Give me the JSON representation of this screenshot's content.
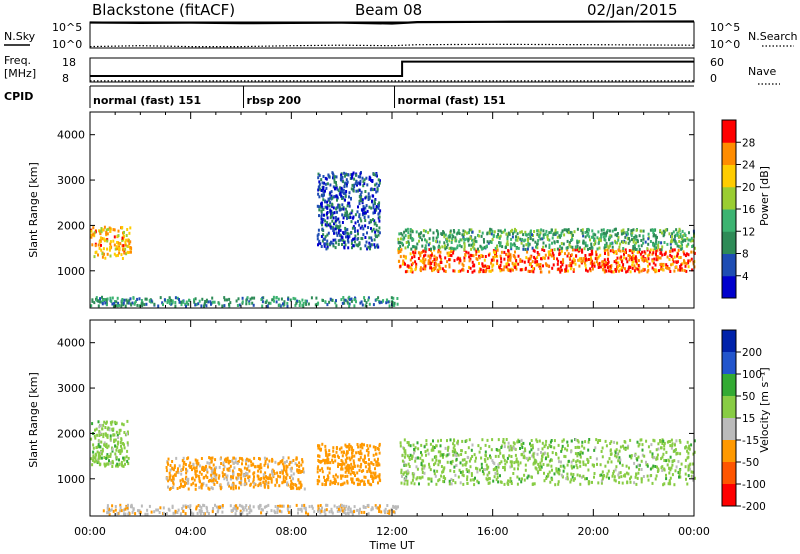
{
  "header": {
    "station": "Blackstone (fitACF)",
    "beam": "Beam 08",
    "date": "02/Jan/2015"
  },
  "top_panels": {
    "nsky_label": "N.Sky",
    "nsearch_label": "N.Search",
    "noise_ticks": [
      "10^5",
      "10^0"
    ],
    "freq_label_top": "Freq.",
    "freq_label_unit": "[MHz]",
    "freq_ticks": [
      "18",
      "8"
    ],
    "nave_label": "Nave",
    "nave_ticks": [
      "60",
      "0"
    ],
    "cpid_label": "CPID"
  },
  "chart_data": [
    {
      "type": "line",
      "title": "",
      "series": [
        {
          "name": "N.Sky",
          "x": [
            0,
            2,
            4,
            6,
            8,
            10,
            12,
            13,
            16,
            20,
            24
          ],
          "y": [
            250000,
            200000,
            220000,
            180000,
            200000,
            230000,
            150000,
            300000,
            350000,
            380000,
            400000
          ]
        },
        {
          "name": "N.Search",
          "x": [
            0,
            2,
            4,
            6,
            8,
            10,
            12,
            13,
            16,
            20,
            24
          ],
          "y": [
            2,
            3,
            2,
            2,
            3,
            4,
            3,
            5,
            6,
            5,
            4
          ]
        }
      ],
      "ylim_labels": [
        "10^0",
        "10^5"
      ],
      "xlim": [
        0,
        24
      ]
    },
    {
      "type": "line",
      "title": "",
      "series": [
        {
          "name": "Freq.",
          "x": [
            0,
            12.4,
            12.4,
            24
          ],
          "y": [
            10.5,
            10.5,
            16.5,
            16.5
          ]
        },
        {
          "name": "Nave",
          "x": [
            0,
            24
          ],
          "y": [
            3,
            3
          ]
        }
      ],
      "freq_ylim": [
        8,
        18
      ],
      "nave_ylim": [
        0,
        60
      ],
      "xlim": [
        0,
        24
      ]
    },
    {
      "type": "heatmap",
      "title": "",
      "cpid_segments": [
        {
          "label": "normal (fast) 151",
          "start": 0,
          "end": 6.1
        },
        {
          "label": "rbsp 200",
          "start": 6.1,
          "end": 12.1
        },
        {
          "label": "normal (fast) 151",
          "start": 12.1,
          "end": 24
        }
      ],
      "xlabel": "Time UT",
      "ylabel": "Slant Range [km]",
      "xlim": [
        0,
        24
      ],
      "ylim": [
        180,
        4500
      ],
      "xticks": [
        "00:00",
        "04:00",
        "08:00",
        "12:00",
        "16:00",
        "20:00",
        "00:00"
      ],
      "yticks": [
        1000,
        2000,
        3000,
        4000
      ],
      "colorbar": {
        "label": "Power [dB]",
        "ticks": [
          4,
          8,
          12,
          16,
          20,
          24,
          28
        ],
        "range": [
          0,
          30
        ]
      },
      "features": [
        {
          "t0": 0,
          "t1": 1.6,
          "r0": 1300,
          "r1": 2000,
          "level": 22
        },
        {
          "t0": 12.2,
          "t1": 24,
          "r0": 1000,
          "r1": 1500,
          "level": 26
        },
        {
          "t0": 12.2,
          "t1": 24,
          "r0": 1500,
          "r1": 1950,
          "level": 12
        },
        {
          "t0": 0,
          "t1": 12.2,
          "r0": 250,
          "r1": 450,
          "level": 10
        },
        {
          "t0": 9,
          "t1": 11.5,
          "r0": 1500,
          "r1": 3200,
          "level": 6
        }
      ]
    },
    {
      "type": "heatmap",
      "title": "",
      "xlabel": "Time UT",
      "ylabel": "Slant Range [km]",
      "xlim": [
        0,
        24
      ],
      "ylim": [
        180,
        4500
      ],
      "xticks": [
        "00:00",
        "04:00",
        "08:00",
        "12:00",
        "16:00",
        "20:00",
        "00:00"
      ],
      "yticks": [
        1000,
        2000,
        3000,
        4000
      ],
      "colorbar": {
        "label": "Velocity [m s⁻¹]",
        "ticks": [
          200,
          100,
          50,
          15,
          -15,
          -50,
          -100,
          -200
        ]
      },
      "features": [
        {
          "t0": 0,
          "t1": 1.5,
          "r0": 1300,
          "r1": 2300,
          "velocity": 0
        },
        {
          "t0": 12.3,
          "t1": 24,
          "r0": 900,
          "r1": 1900,
          "velocity": 0
        },
        {
          "t0": 3,
          "t1": 8.5,
          "r0": 800,
          "r1": 1500,
          "velocity": -60
        },
        {
          "t0": 9,
          "t1": 11.5,
          "r0": 900,
          "r1": 1800,
          "velocity": -70
        },
        {
          "t0": 0.5,
          "t1": 12.2,
          "r0": 250,
          "r1": 450,
          "velocity": -40
        }
      ]
    }
  ],
  "colors": {
    "power_scale": [
      "#0000cc",
      "#1e4db3",
      "#2e8b57",
      "#3cb371",
      "#9acd32",
      "#ffcc00",
      "#ff8c00",
      "#ff0000"
    ],
    "velocity_scale": [
      "#0022aa",
      "#2255cc",
      "#33aa33",
      "#88cc44",
      "#bbbbbb",
      "#ff9900",
      "#ff5500",
      "#ff0000"
    ]
  }
}
